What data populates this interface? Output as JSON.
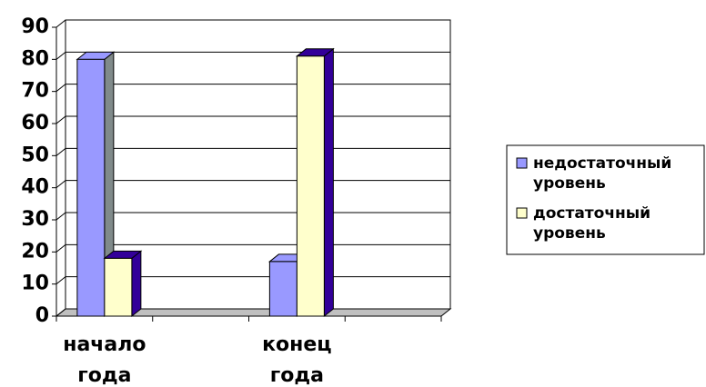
{
  "chart_data": {
    "type": "bar3d",
    "categories": [
      "начало года",
      null,
      "конец года",
      null
    ],
    "series": [
      {
        "name": "недостаточный уровень",
        "color": "#9999ff",
        "values": [
          80,
          null,
          17,
          null
        ]
      },
      {
        "name": "достаточный уровень",
        "color": "#ffffcc",
        "values": [
          18,
          null,
          81,
          null
        ]
      }
    ],
    "ylim": [
      0,
      90
    ],
    "yticks": [
      0,
      10,
      20,
      30,
      40,
      50,
      60,
      70,
      80,
      90
    ],
    "grid": true,
    "legend": "right"
  }
}
